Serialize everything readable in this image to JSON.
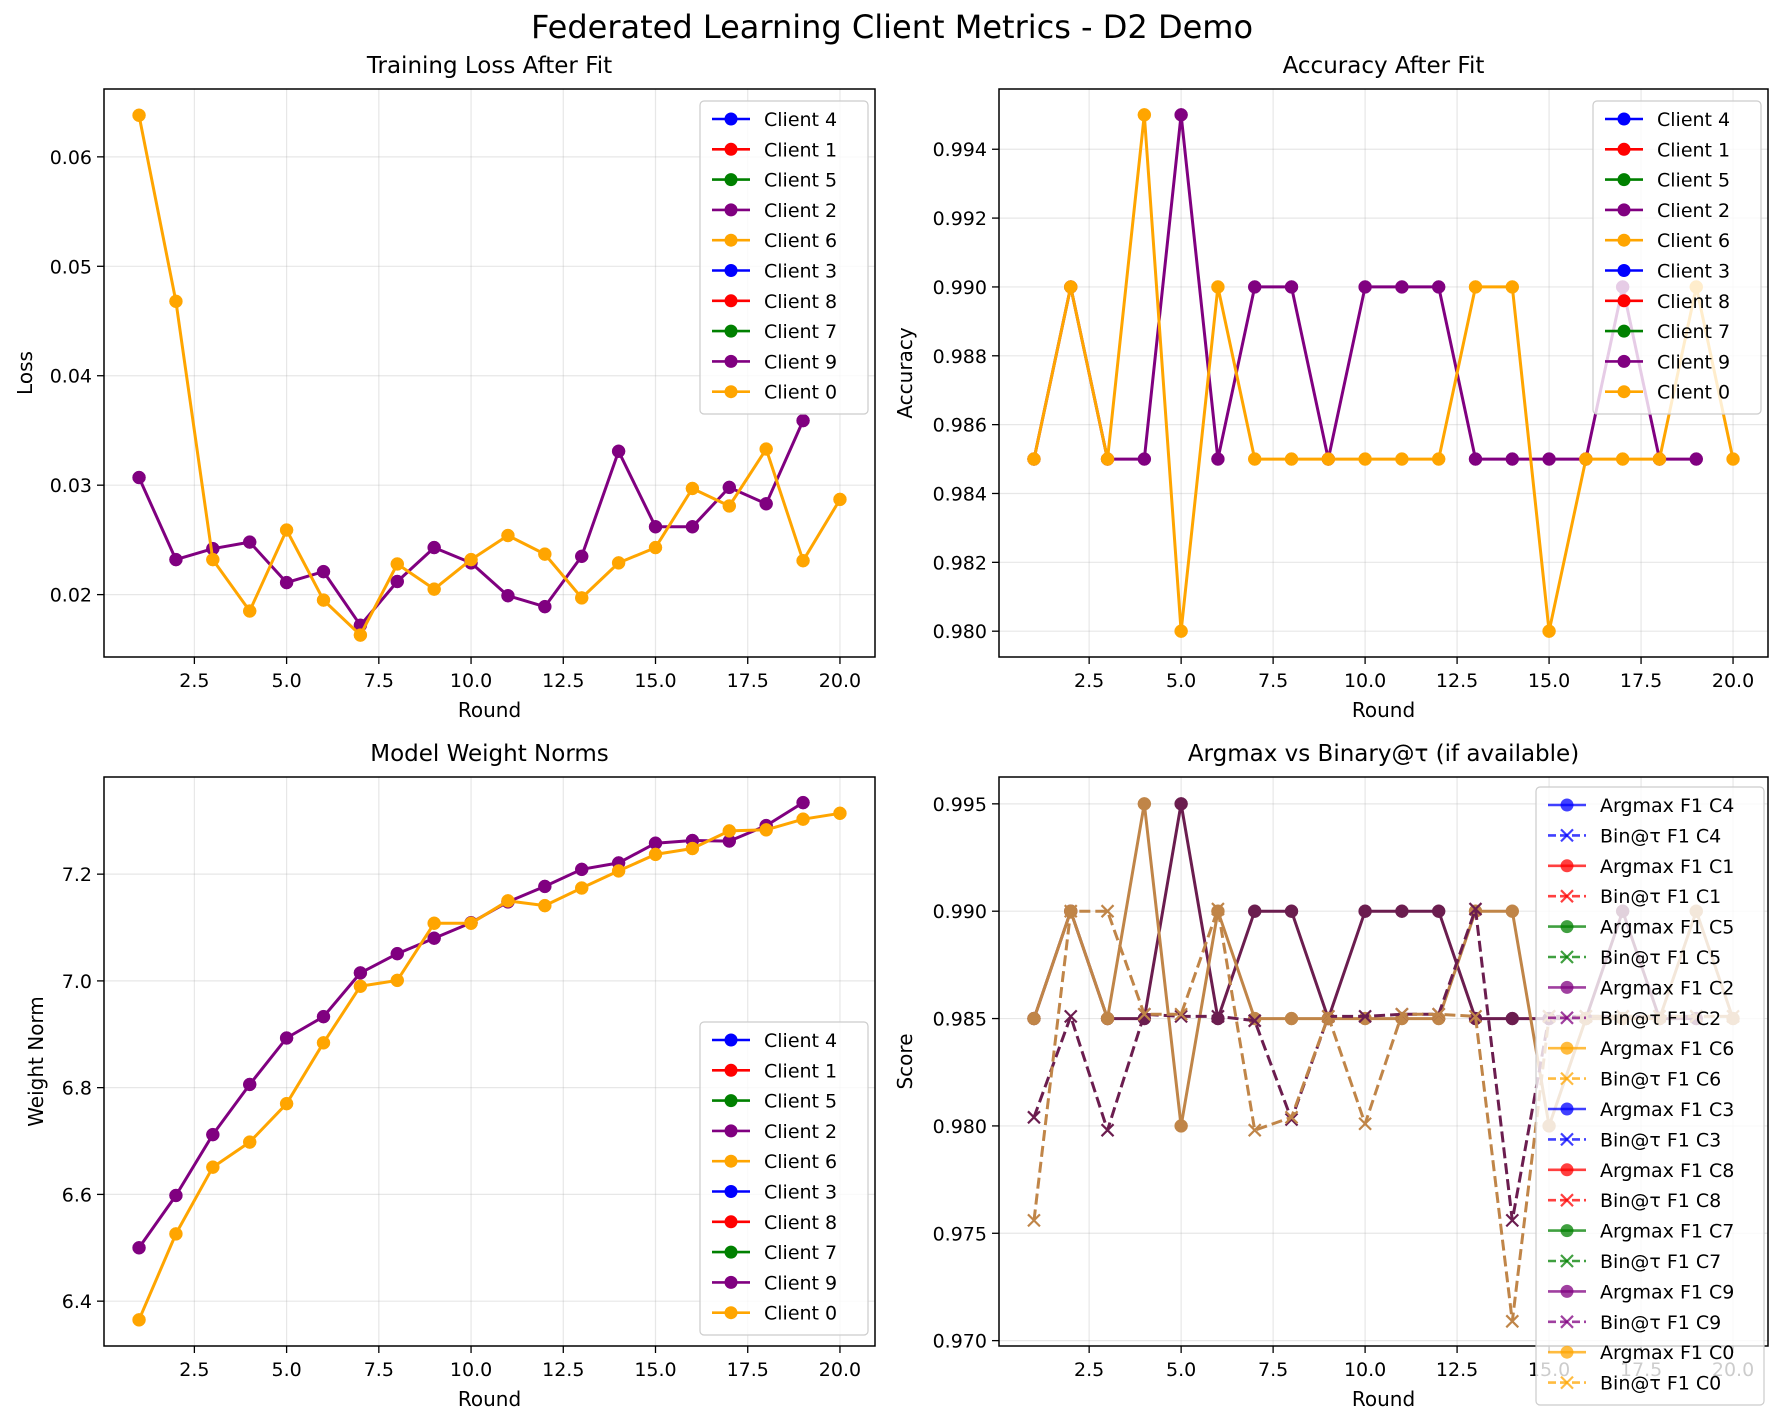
{
  "suptitle": "Federated Learning Client Metrics - D2 Demo",
  "colors": {
    "blue": "#0000ff",
    "red": "#ff0000",
    "green": "#008000",
    "purple": "#800080",
    "orange": "#ffa500"
  },
  "legend_clients": [
    {
      "label": "Client 4",
      "color": "#0000ff"
    },
    {
      "label": "Client 1",
      "color": "#ff0000"
    },
    {
      "label": "Client 5",
      "color": "#008000"
    },
    {
      "label": "Client 2",
      "color": "#800080"
    },
    {
      "label": "Client 6",
      "color": "#ffa500"
    },
    {
      "label": "Client 3",
      "color": "#0000ff"
    },
    {
      "label": "Client 8",
      "color": "#ff0000"
    },
    {
      "label": "Client 7",
      "color": "#008000"
    },
    {
      "label": "Client 9",
      "color": "#800080"
    },
    {
      "label": "Client 0",
      "color": "#ffa500"
    }
  ],
  "chart_data": [
    {
      "type": "line",
      "title": "Training Loss After Fit",
      "xlabel": "Round",
      "ylabel": "Loss",
      "xlim": [
        0.05,
        20.95
      ],
      "ylim": [
        0.0143,
        0.0662
      ],
      "xticks": [
        2.5,
        5.0,
        7.5,
        10.0,
        12.5,
        15.0,
        17.5,
        20.0
      ],
      "xtick_labels": [
        "2.5",
        "5.0",
        "7.5",
        "10.0",
        "12.5",
        "15.0",
        "17.5",
        "20.0"
      ],
      "yticks": [
        0.02,
        0.03,
        0.04,
        0.05,
        0.06
      ],
      "ytick_labels": [
        "0.02",
        "0.03",
        "0.04",
        "0.05",
        "0.06"
      ],
      "grid": true,
      "legend_position": "top-right",
      "series": [
        {
          "name": "Client 2",
          "color": "#800080",
          "x": [
            1,
            2,
            3,
            4,
            5,
            6,
            7,
            8,
            9,
            10,
            11,
            12,
            13,
            14,
            15,
            16,
            17,
            18,
            19
          ],
          "y": [
            0.0307,
            0.0232,
            0.0242,
            0.0248,
            0.0211,
            0.0221,
            0.0172,
            0.0212,
            0.0243,
            0.0229,
            0.0199,
            0.0189,
            0.0235,
            0.0331,
            0.0262,
            0.0262,
            0.0298,
            0.0283,
            0.0359
          ]
        },
        {
          "name": "Client 6",
          "color": "#ffa500",
          "x": [
            1,
            2,
            3,
            4,
            5,
            6,
            7,
            8,
            9,
            10,
            11,
            12,
            13,
            14,
            15,
            16,
            17,
            18,
            19,
            20
          ],
          "y": [
            0.0638,
            0.0468,
            0.0232,
            0.0185,
            0.0259,
            0.0195,
            0.0163,
            0.0228,
            0.0205,
            0.0232,
            0.0254,
            0.0237,
            0.0197,
            0.0229,
            0.0243,
            0.0297,
            0.0281,
            0.0333,
            0.0231,
            0.0287
          ]
        }
      ]
    },
    {
      "type": "line",
      "title": "Accuracy After Fit",
      "xlabel": "Round",
      "ylabel": "Accuracy",
      "xlim": [
        0.05,
        20.95
      ],
      "ylim": [
        0.97925,
        0.99575
      ],
      "xticks": [
        2.5,
        5.0,
        7.5,
        10.0,
        12.5,
        15.0,
        17.5,
        20.0
      ],
      "xtick_labels": [
        "2.5",
        "5.0",
        "7.5",
        "10.0",
        "12.5",
        "15.0",
        "17.5",
        "20.0"
      ],
      "yticks": [
        0.98,
        0.982,
        0.984,
        0.986,
        0.988,
        0.99,
        0.992,
        0.994
      ],
      "ytick_labels": [
        "0.980",
        "0.982",
        "0.984",
        "0.986",
        "0.988",
        "0.990",
        "0.992",
        "0.994"
      ],
      "grid": true,
      "legend_position": "top-right",
      "series": [
        {
          "name": "Client 2",
          "color": "#800080",
          "x": [
            1,
            2,
            3,
            4,
            5,
            6,
            7,
            8,
            9,
            10,
            11,
            12,
            13,
            14,
            15,
            16,
            17,
            18,
            19
          ],
          "y": [
            0.985,
            0.99,
            0.985,
            0.985,
            0.995,
            0.985,
            0.99,
            0.99,
            0.985,
            0.99,
            0.99,
            0.99,
            0.985,
            0.985,
            0.985,
            0.985,
            0.99,
            0.985,
            0.985
          ]
        },
        {
          "name": "Client 6",
          "color": "#ffa500",
          "x": [
            1,
            2,
            3,
            4,
            5,
            6,
            7,
            8,
            9,
            10,
            11,
            12,
            13,
            14,
            15,
            16,
            17,
            18,
            19,
            20
          ],
          "y": [
            0.985,
            0.99,
            0.985,
            0.995,
            0.98,
            0.99,
            0.985,
            0.985,
            0.985,
            0.985,
            0.985,
            0.985,
            0.99,
            0.99,
            0.98,
            0.985,
            0.985,
            0.985,
            0.99,
            0.985
          ]
        }
      ]
    },
    {
      "type": "line",
      "title": "Model Weight Norms",
      "xlabel": "Round",
      "ylabel": "Weight Norm",
      "xlim": [
        0.05,
        20.95
      ],
      "ylim": [
        6.316,
        7.382
      ],
      "xticks": [
        2.5,
        5.0,
        7.5,
        10.0,
        12.5,
        15.0,
        17.5,
        20.0
      ],
      "xtick_labels": [
        "2.5",
        "5.0",
        "7.5",
        "10.0",
        "12.5",
        "15.0",
        "17.5",
        "20.0"
      ],
      "yticks": [
        6.4,
        6.6,
        6.8,
        7.0,
        7.2
      ],
      "ytick_labels": [
        "6.4",
        "6.6",
        "6.8",
        "7.0",
        "7.2"
      ],
      "grid": true,
      "legend_position": "bottom-right",
      "series": [
        {
          "name": "Client 2",
          "color": "#800080",
          "x": [
            1,
            2,
            3,
            4,
            5,
            6,
            7,
            8,
            9,
            10,
            11,
            12,
            13,
            14,
            15,
            16,
            17,
            18,
            19
          ],
          "y": [
            6.5,
            6.598,
            6.712,
            6.806,
            6.893,
            6.933,
            7.015,
            7.051,
            7.08,
            7.109,
            7.148,
            7.177,
            7.209,
            7.221,
            7.258,
            7.263,
            7.262,
            7.291,
            7.334
          ]
        },
        {
          "name": "Client 6",
          "color": "#ffa500",
          "x": [
            1,
            2,
            3,
            4,
            5,
            6,
            7,
            8,
            9,
            10,
            11,
            12,
            13,
            14,
            15,
            16,
            17,
            18,
            19,
            20
          ],
          "y": [
            6.365,
            6.526,
            6.651,
            6.698,
            6.77,
            6.884,
            6.99,
            7.001,
            7.108,
            7.108,
            7.15,
            7.141,
            7.174,
            7.206,
            7.237,
            7.248,
            7.281,
            7.283,
            7.303,
            7.314
          ]
        }
      ]
    },
    {
      "type": "line",
      "title": "Argmax vs Binary@τ (if available)",
      "xlabel": "Round",
      "ylabel": "Score",
      "xlim": [
        0.05,
        20.95
      ],
      "ylim": [
        0.96975,
        0.99625
      ],
      "xticks": [
        2.5,
        5.0,
        7.5,
        10.0,
        12.5,
        15.0,
        17.5,
        20.0
      ],
      "xtick_labels": [
        "2.5",
        "5.0",
        "7.5",
        "10.0",
        "12.5",
        "15.0",
        "17.5",
        "20.0"
      ],
      "yticks": [
        0.97,
        0.975,
        0.98,
        0.985,
        0.99,
        0.995
      ],
      "ytick_labels": [
        "0.970",
        "0.975",
        "0.980",
        "0.985",
        "0.990",
        "0.995"
      ],
      "grid": true,
      "legend_position": "top-right",
      "legend": [
        {
          "label": "Argmax F1 C4",
          "color": "#0000ff",
          "style": "solid"
        },
        {
          "label": "Bin@τ F1 C4",
          "color": "#0000ff",
          "style": "dashed"
        },
        {
          "label": "Argmax F1 C1",
          "color": "#ff0000",
          "style": "solid"
        },
        {
          "label": "Bin@τ F1 C1",
          "color": "#ff0000",
          "style": "dashed"
        },
        {
          "label": "Argmax F1 C5",
          "color": "#008000",
          "style": "solid"
        },
        {
          "label": "Bin@τ F1 C5",
          "color": "#008000",
          "style": "dashed"
        },
        {
          "label": "Argmax F1 C2",
          "color": "#800080",
          "style": "solid"
        },
        {
          "label": "Bin@τ F1 C2",
          "color": "#800080",
          "style": "dashed"
        },
        {
          "label": "Argmax F1 C6",
          "color": "#ffa500",
          "style": "solid"
        },
        {
          "label": "Bin@τ F1 C6",
          "color": "#ffa500",
          "style": "dashed"
        },
        {
          "label": "Argmax F1 C3",
          "color": "#0000ff",
          "style": "solid"
        },
        {
          "label": "Bin@τ F1 C3",
          "color": "#0000ff",
          "style": "dashed"
        },
        {
          "label": "Argmax F1 C8",
          "color": "#ff0000",
          "style": "solid"
        },
        {
          "label": "Bin@τ F1 C8",
          "color": "#ff0000",
          "style": "dashed"
        },
        {
          "label": "Argmax F1 C7",
          "color": "#008000",
          "style": "solid"
        },
        {
          "label": "Bin@τ F1 C7",
          "color": "#008000",
          "style": "dashed"
        },
        {
          "label": "Argmax F1 C9",
          "color": "#800080",
          "style": "solid"
        },
        {
          "label": "Bin@τ F1 C9",
          "color": "#800080",
          "style": "dashed"
        },
        {
          "label": "Argmax F1 C0",
          "color": "#ffa500",
          "style": "solid"
        },
        {
          "label": "Bin@τ F1 C0",
          "color": "#ffa500",
          "style": "dashed"
        }
      ],
      "series": [
        {
          "name": "Argmax F1 C2",
          "color": "#6b1d4f",
          "style": "solid",
          "x": [
            1,
            2,
            3,
            4,
            5,
            6,
            7,
            8,
            9,
            10,
            11,
            12,
            13,
            14,
            15,
            16,
            17,
            18,
            19
          ],
          "y": [
            0.985,
            0.99,
            0.985,
            0.985,
            0.995,
            0.985,
            0.99,
            0.99,
            0.985,
            0.99,
            0.99,
            0.99,
            0.985,
            0.985,
            0.985,
            0.985,
            0.99,
            0.985,
            0.985
          ]
        },
        {
          "name": "Argmax F1 C6",
          "color": "#c08548",
          "style": "solid",
          "x": [
            1,
            2,
            3,
            4,
            5,
            6,
            7,
            8,
            9,
            10,
            11,
            12,
            13,
            14,
            15,
            16,
            17,
            18,
            19,
            20
          ],
          "y": [
            0.985,
            0.99,
            0.985,
            0.995,
            0.98,
            0.99,
            0.985,
            0.985,
            0.985,
            0.985,
            0.985,
            0.985,
            0.99,
            0.99,
            0.98,
            0.985,
            0.985,
            0.985,
            0.99,
            0.985
          ]
        },
        {
          "name": "Bin@τ F1 C2",
          "color": "#6b1d4f",
          "style": "dashed",
          "x": [
            1,
            2,
            3,
            4,
            5,
            6,
            7,
            8,
            9,
            10,
            11,
            12,
            13,
            14,
            15,
            16,
            17,
            18,
            19
          ],
          "y": [
            0.9804,
            0.9851,
            0.9798,
            0.9852,
            0.9851,
            0.9851,
            0.9849,
            0.9803,
            0.9851,
            0.9851,
            0.9852,
            0.9852,
            0.9901,
            0.9756,
            0.9851,
            0.9851,
            0.9851,
            0.9851,
            0.9851
          ]
        },
        {
          "name": "Bin@τ F1 C6",
          "color": "#c08548",
          "style": "dashed",
          "x": [
            1,
            2,
            3,
            4,
            5,
            6,
            7,
            8,
            9,
            10,
            11,
            12,
            13,
            14,
            15,
            16,
            17,
            18,
            19,
            20
          ],
          "y": [
            0.9756,
            0.99,
            0.99,
            0.9852,
            0.9852,
            0.9901,
            0.9798,
            0.9804,
            0.9851,
            0.9801,
            0.9852,
            0.9852,
            0.9851,
            0.9709,
            0.9851,
            0.9851,
            0.9851,
            0.9851,
            0.9851,
            0.9851
          ]
        }
      ]
    }
  ]
}
